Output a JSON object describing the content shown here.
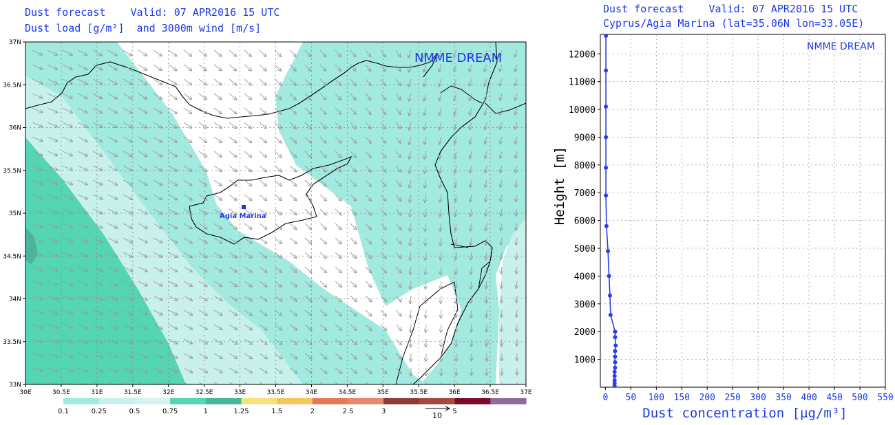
{
  "map": {
    "title_line1": "Dust forecast    Valid: 07 APR2016 15 UTC",
    "title_line2": "Dust load [g/m²]  and 3000m wind [m/s]",
    "model_label": "NMME DREAM",
    "station_label": "Agia Marina",
    "lat_ticks": [
      "37N",
      "36.5N",
      "36N",
      "35.5N",
      "35N",
      "34.5N",
      "34N",
      "33.5N",
      "33N"
    ],
    "lon_ticks": [
      "30E",
      "30.5E",
      "31E",
      "31.5E",
      "32E",
      "32.5E",
      "33E",
      "33.5E",
      "34E",
      "34.5E",
      "35E",
      "35.5E",
      "36E",
      "36.5E",
      "37E"
    ],
    "colors": {
      "land_line": "#000000",
      "grid": "#888888",
      "wind_arrow": "#9a9a9a",
      "dust_01": "#a2e9df",
      "dust_025": "#c8f1ec",
      "dust_05": "#53d6b1",
      "dust_1": "#47b69b"
    }
  },
  "colorbar": {
    "labels": [
      "0.1",
      "0.25",
      "0.5",
      "0.75",
      "1",
      "1.25",
      "1.5",
      "2",
      "2.5",
      "3",
      "5"
    ],
    "colors": [
      "#a2e9df",
      "#c8f1ec",
      "#d5f4f0",
      "#53d6b1",
      "#47b69b",
      "#f3e27e",
      "#f2c65a",
      "#e27a55",
      "#e6876e",
      "#8e3b35",
      "#a54940",
      "#7d0a2a",
      "#8f6a9d"
    ],
    "wind_ref_label": "10"
  },
  "profile": {
    "title_line1": "Dust forecast    Valid: 07 APR2016 15 UTC",
    "title_line2": "Cyprus/Agia Marina (lat=35.06N lon=33.05E)",
    "model_label": "NMME DREAM",
    "ylabel": "Height [m]",
    "xlabel": "Dust concentration [µg/m³]"
  },
  "chart_data": {
    "type": "line",
    "title": "Dust forecast    Valid: 07 APR2016 15 UTC",
    "subtitle": "Cyprus/Agia Marina (lat=35.06N lon=33.05E)",
    "xlabel": "Dust concentration [µg/m³]",
    "ylabel": "Height [m]",
    "xlim": [
      -10,
      550
    ],
    "ylim": [
      0,
      12700
    ],
    "x_ticks": [
      0,
      50,
      100,
      150,
      200,
      250,
      300,
      350,
      400,
      450,
      500,
      550
    ],
    "y_ticks": [
      1000,
      2000,
      3000,
      4000,
      5000,
      6000,
      7000,
      8000,
      9000,
      10000,
      11000,
      12000
    ],
    "grid": true,
    "series": [
      {
        "color": "#2a3fe6",
        "points": [
          [
            18,
            50
          ],
          [
            18,
            150
          ],
          [
            18,
            250
          ],
          [
            18,
            400
          ],
          [
            18,
            550
          ],
          [
            19,
            700
          ],
          [
            19,
            900
          ],
          [
            19,
            1100
          ],
          [
            19,
            1300
          ],
          [
            20,
            1500
          ],
          [
            19,
            1800
          ],
          [
            19,
            2000
          ],
          [
            10,
            2600
          ],
          [
            9,
            3300
          ],
          [
            7,
            4000
          ],
          [
            5,
            4900
          ],
          [
            2,
            5800
          ],
          [
            1,
            6900
          ],
          [
            1,
            7900
          ],
          [
            1,
            9000
          ],
          [
            1,
            10100
          ],
          [
            1,
            11400
          ],
          [
            1,
            12650
          ]
        ]
      }
    ]
  }
}
